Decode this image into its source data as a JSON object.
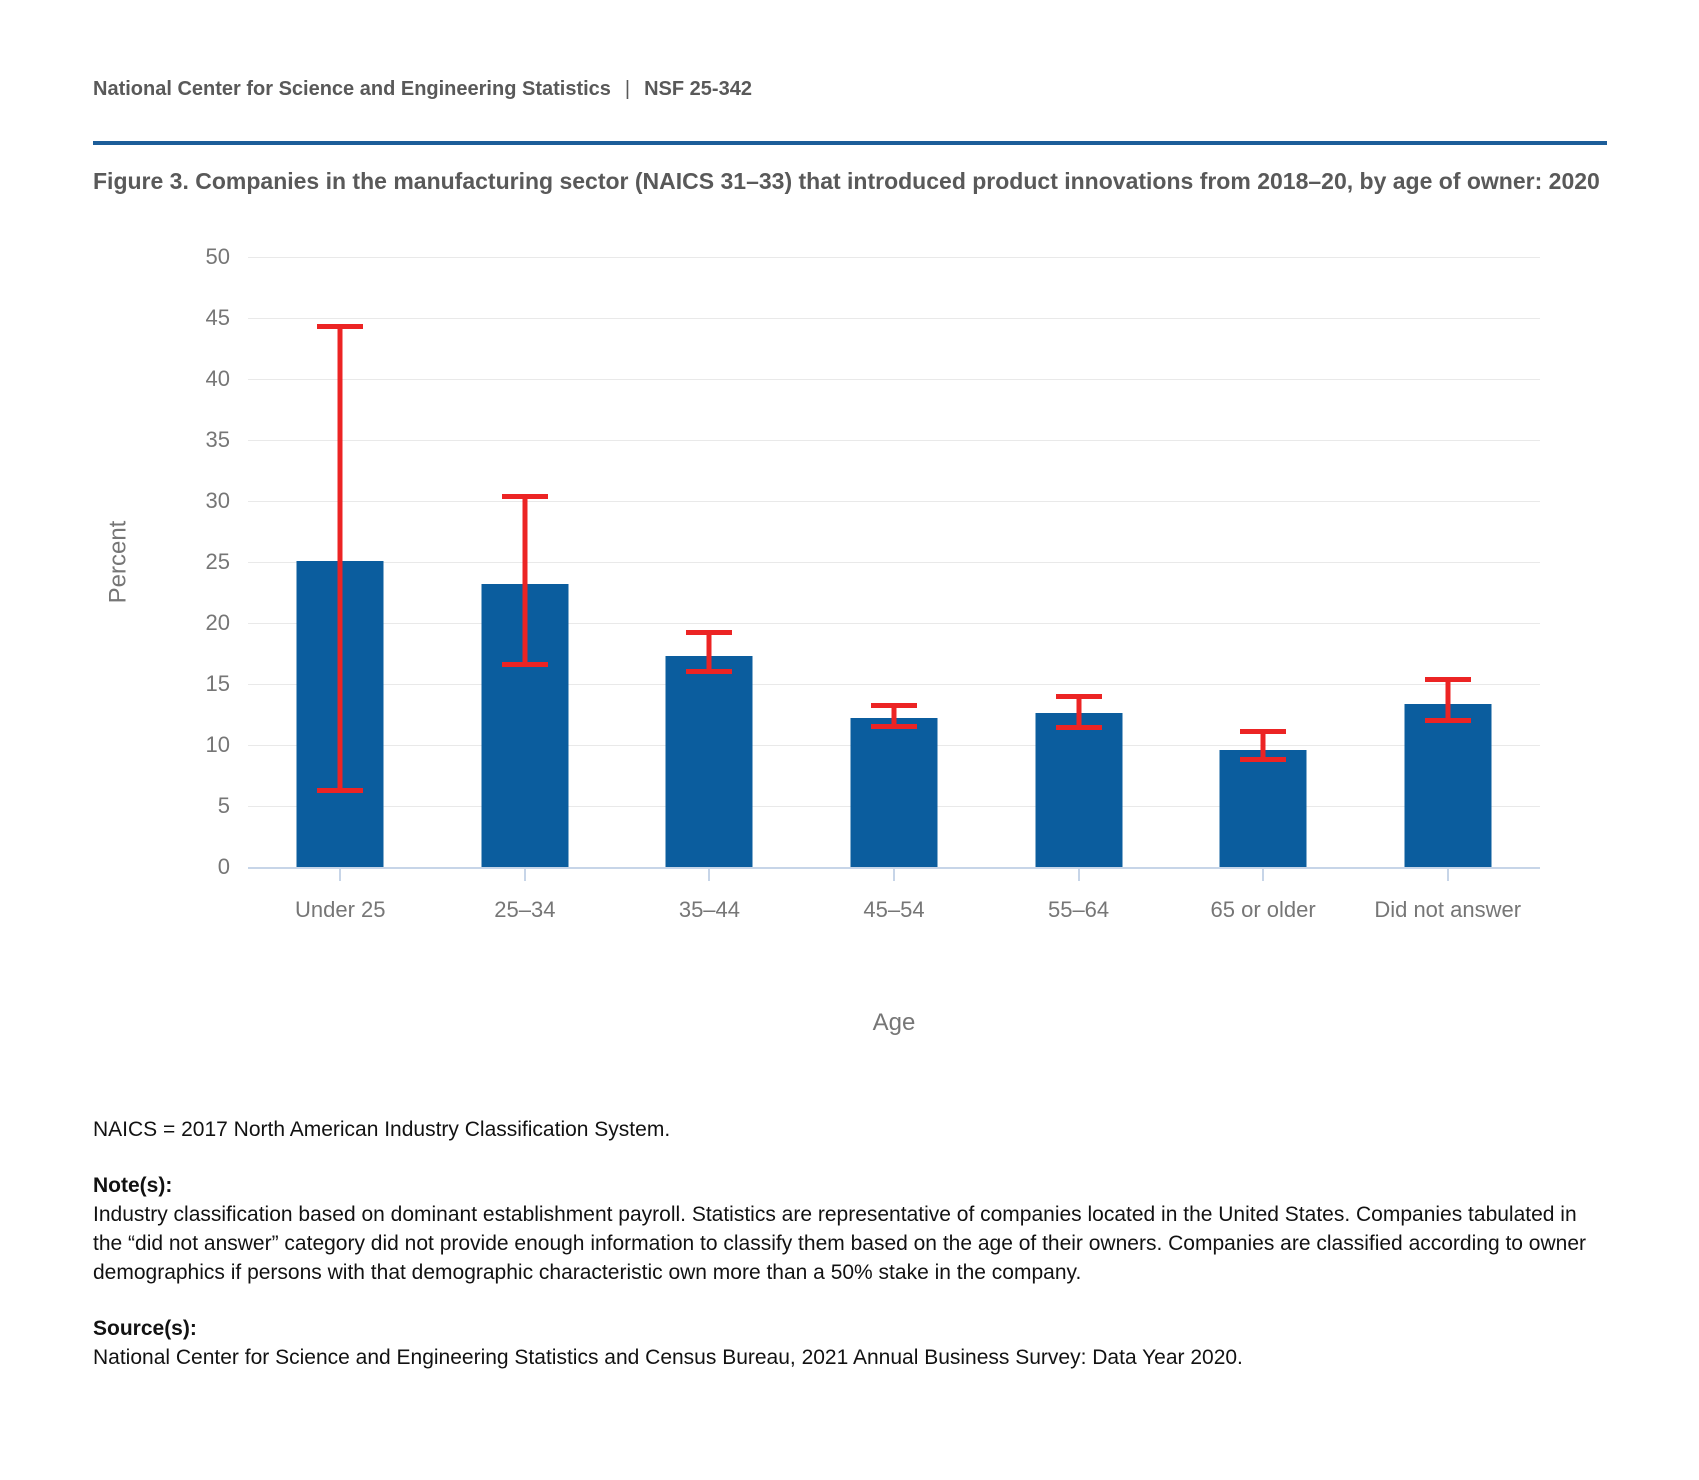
{
  "page": {
    "header": {
      "org": "National Center for Science and Engineering Statistics",
      "separator": "|",
      "report_id": "NSF 25-342"
    },
    "title": "Figure 3. Companies in the manufacturing sector (NAICS 31–33) that introduced product innovations from 2018–20, by age of owner: 2020"
  },
  "chart_data": {
    "type": "bar",
    "title": "Companies in the manufacturing sector (NAICS 31–33) that introduced product innovations from 2018–20, by age of owner: 2020",
    "xlabel": "Age",
    "ylabel": "Percent",
    "ylim": [
      0,
      50
    ],
    "ytick_step": 5,
    "yticks": [
      0,
      5,
      10,
      15,
      20,
      25,
      30,
      35,
      40,
      45,
      50
    ],
    "grid": true,
    "legend": "none",
    "categories": [
      "Under 25",
      "25–34",
      "35–44",
      "45–54",
      "55–64",
      "65 or older",
      "Did not answer"
    ],
    "values": [
      25.1,
      23.2,
      17.3,
      12.2,
      12.6,
      9.6,
      13.4
    ],
    "error_bars": {
      "low": [
        6.3,
        16.6,
        16.0,
        11.5,
        11.4,
        8.8,
        12.0
      ],
      "high": [
        44.3,
        30.4,
        19.2,
        13.2,
        14.0,
        11.1,
        15.4
      ]
    },
    "bar_color": "#0B5D9E",
    "error_color": "#EC2424",
    "gridline_color": "#E9E9E9",
    "axis_line_color": "#C7D5E8",
    "tick_label_color": "#767676"
  },
  "footer": {
    "abbreviation_note": "NAICS = 2017 North American Industry Classification System.",
    "notes_label": "Note(s):",
    "notes_text": "Industry classification based on dominant establishment payroll. Statistics are representative of companies located in the United States. Companies tabulated in the “did not answer” category did not provide enough information to classify them based on the age of their owners. Companies are classified according to owner demographics if persons with that demographic characteristic own more than a 50% stake in the company.",
    "sources_label": "Source(s):",
    "sources_text": "National Center for Science and Engineering Statistics and Census Bureau, 2021 Annual Business Survey: Data Year 2020."
  },
  "accent_colors": {
    "title_rule_blue": "#1C5D99",
    "heading_gray": "#595959"
  }
}
